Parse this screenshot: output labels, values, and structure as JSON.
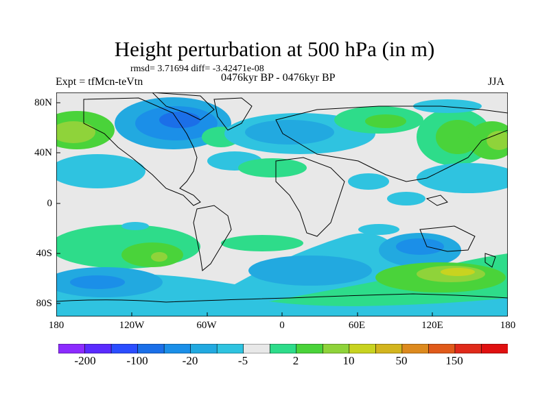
{
  "header": {
    "title": "Height perturbation at 500 hPa (in m)",
    "stats": "rmsd= 3.71694 diff= -3.42471e-08",
    "experiment": "Expt = tfMcn-teVtn",
    "period": "0476kyr BP - 0476kyr BP",
    "season": "JJA"
  },
  "axes": {
    "lat_ticks": [
      "80N",
      "40N",
      "0",
      "40S",
      "80S"
    ],
    "lon_ticks": [
      "180",
      "120W",
      "60W",
      "0",
      "60E",
      "120E",
      "180"
    ]
  },
  "colorbar": {
    "labels": [
      "-200",
      "-100",
      "-20",
      "-5",
      "2",
      "10",
      "50",
      "150"
    ],
    "colors": [
      "#8c2bff",
      "#5a2bff",
      "#2b4dff",
      "#1b6fe8",
      "#1b8fe8",
      "#22a9e0",
      "#2fc3e0",
      "#e8e8e8",
      "#2edc8a",
      "#4ad33a",
      "#8fd33a",
      "#c8d320",
      "#d3b51e",
      "#dd8a1e",
      "#e05a1a",
      "#e02a1a",
      "#e01010"
    ]
  },
  "map": {
    "background_color": "#e8e8e8",
    "features": [
      {
        "name": "arctic-negative",
        "level": "-20"
      },
      {
        "name": "southern-ocean-negative",
        "level": "-5"
      },
      {
        "name": "south-pacific-positive",
        "level": "10"
      },
      {
        "name": "southern-indian-positive",
        "level": "50"
      }
    ]
  }
}
